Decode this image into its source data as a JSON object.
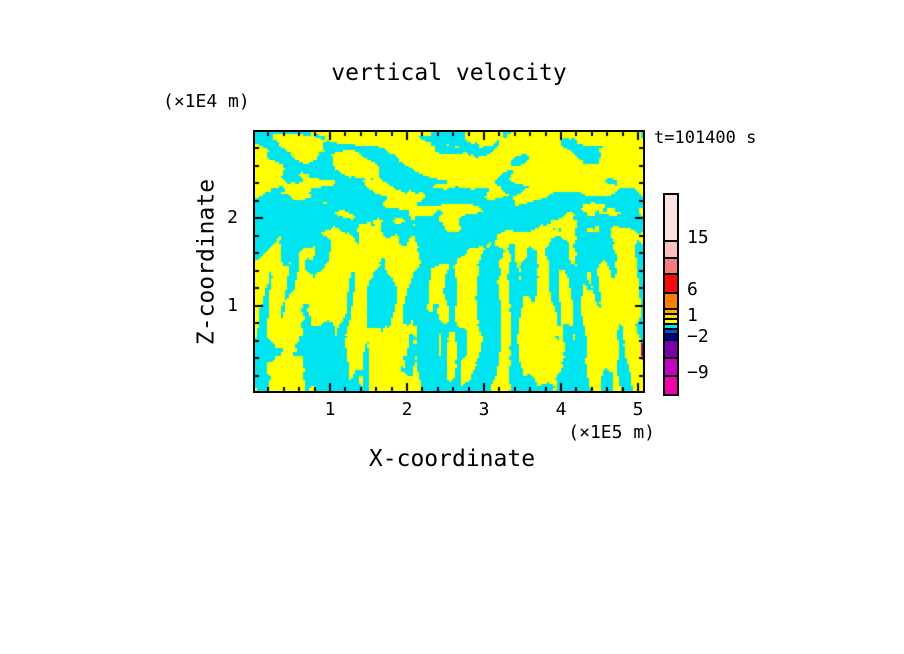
{
  "chart_data": {
    "type": "heatmap",
    "title": "vertical velocity",
    "timestamp": "t=101400 s",
    "xlabel": "X-coordinate",
    "ylabel": "Z-coordinate",
    "x_unit": "(×1E5 m)",
    "y_unit": "(×1E4 m)",
    "xlim": [
      0,
      5.09
    ],
    "ylim": [
      0,
      3.01
    ],
    "x_ticks": [
      1,
      2,
      3,
      4,
      5
    ],
    "y_ticks": [
      1,
      2
    ],
    "x_minor_step": 0.2,
    "y_minor_step": 0.2,
    "grid": false,
    "legend_position": "right",
    "field": {
      "description": "binary tone field: yellow = positive (0..1) vertical velocity, cyan = negative (-1..0); wavy horizontal bands aloft, narrow vertical convective stripes below",
      "positive_color": "#FFFF00",
      "negative_color": "#00E4F0",
      "seed": 7,
      "edge_flecks": [
        {
          "x": 388,
          "y": 213,
          "w": 3,
          "h": 13,
          "color": "#7A02AC"
        },
        {
          "x": 389,
          "y": 226,
          "w": 2,
          "h": 4,
          "color": "#F004A8"
        }
      ]
    },
    "colorbar": {
      "segments": [
        {
          "color": "#FBE1E1",
          "h": 45
        },
        {
          "color": "#F9BEBE",
          "h": 17
        },
        {
          "color": "#F47C7C",
          "h": 16
        },
        {
          "color": "#FA0A0A",
          "h": 19
        },
        {
          "color": "#FD7F02",
          "h": 16
        },
        {
          "color": "#FFA800",
          "h": 5
        },
        {
          "color": "#FFD800",
          "h": 5
        },
        {
          "color": "#FFFF00",
          "h": 5
        },
        {
          "color": "#00E4F0",
          "h": 5
        },
        {
          "color": "#0A4AF5",
          "h": 5
        },
        {
          "color": "#0000A8",
          "h": 6
        },
        {
          "color": "#7A02AC",
          "h": 18
        },
        {
          "color": "#C403C4",
          "h": 18
        },
        {
          "color": "#F004A8",
          "h": 19
        }
      ],
      "labels": [
        {
          "text": "15",
          "value": 15,
          "offset": 45
        },
        {
          "text": "6",
          "value": 6,
          "offset": 97
        },
        {
          "text": "1",
          "value": 1,
          "offset": 123
        },
        {
          "text": "−2",
          "value": -2,
          "offset": 144
        },
        {
          "text": "−9",
          "value": -9,
          "offset": 180
        }
      ]
    }
  }
}
